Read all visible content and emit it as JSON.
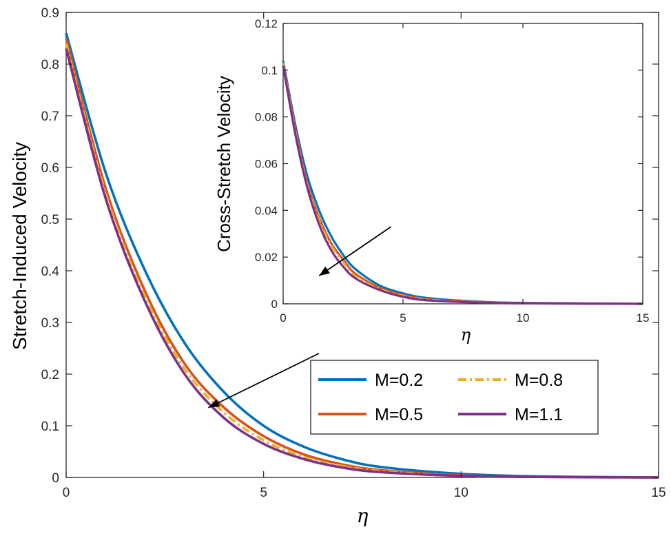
{
  "chart_data": [
    {
      "type": "line",
      "panel": "main",
      "xlabel": "η",
      "ylabel": "Stretch-Induced Velocity",
      "xlim": [
        0,
        15
      ],
      "ylim": [
        0,
        0.9
      ],
      "xticks": [
        0,
        5,
        10,
        15
      ],
      "yticks": [
        0,
        0.1,
        0.2,
        0.3,
        0.4,
        0.5,
        0.6,
        0.7,
        0.8,
        0.9
      ],
      "xtick_labels": [
        "0",
        "5",
        "10",
        "15"
      ],
      "ytick_labels": [
        "0",
        "0.1",
        "0.2",
        "0.3",
        "0.4",
        "0.5",
        "0.6",
        "0.7",
        "0.8",
        "0.9"
      ],
      "grid": false,
      "legend": "lower-right, 2 columns",
      "annotation": "arrow pointing in direction of increasing M",
      "series": [
        {
          "name": "M=0.2",
          "color": "#0072BD",
          "style": "solid",
          "x": [
            0,
            1,
            2,
            3,
            4,
            5,
            6,
            7,
            8,
            10,
            12,
            15
          ],
          "y": [
            0.86,
            0.59,
            0.4,
            0.26,
            0.165,
            0.1,
            0.06,
            0.035,
            0.02,
            0.007,
            0.002,
            0.0
          ]
        },
        {
          "name": "M=0.5",
          "color": "#D95319",
          "style": "solid",
          "x": [
            0,
            1,
            2,
            3,
            4,
            5,
            6,
            7,
            8,
            10,
            12,
            15
          ],
          "y": [
            0.85,
            0.56,
            0.36,
            0.22,
            0.135,
            0.08,
            0.045,
            0.025,
            0.014,
            0.004,
            0.001,
            0.0
          ]
        },
        {
          "name": "M=0.8",
          "color": "#EDB120",
          "style": "dashdot",
          "x": [
            0,
            1,
            2,
            3,
            4,
            5,
            6,
            7,
            8,
            10,
            12,
            15
          ],
          "y": [
            0.84,
            0.55,
            0.35,
            0.21,
            0.125,
            0.072,
            0.04,
            0.022,
            0.012,
            0.003,
            0.001,
            0.0
          ]
        },
        {
          "name": "M=1.1",
          "color": "#7E2F8E",
          "style": "solid",
          "x": [
            0,
            1,
            2,
            3,
            4,
            5,
            6,
            7,
            8,
            10,
            12,
            15
          ],
          "y": [
            0.83,
            0.54,
            0.34,
            0.2,
            0.115,
            0.065,
            0.036,
            0.019,
            0.01,
            0.003,
            0.001,
            0.0
          ]
        }
      ],
      "arrow": {
        "from": [
          6.4,
          0.24
        ],
        "to": [
          3.6,
          0.135
        ]
      }
    },
    {
      "type": "line",
      "panel": "inset",
      "xlabel": "η",
      "ylabel": "Cross-Stretch Velocity",
      "xlim": [
        0,
        15
      ],
      "ylim": [
        0,
        0.12
      ],
      "xticks": [
        0,
        5,
        10,
        15
      ],
      "yticks": [
        0,
        0.02,
        0.04,
        0.06,
        0.08,
        0.1,
        0.12
      ],
      "xtick_labels": [
        "0",
        "5",
        "10",
        "15"
      ],
      "ytick_labels": [
        "0",
        "0.02",
        "0.04",
        "0.06",
        "0.08",
        "0.1",
        "0.12"
      ],
      "grid": false,
      "series": [
        {
          "name": "M=0.2",
          "color": "#0072BD",
          "style": "solid",
          "x": [
            0,
            0.5,
            1,
            1.5,
            2,
            2.5,
            3,
            4,
            5,
            6,
            8,
            10,
            15
          ],
          "y": [
            0.104,
            0.077,
            0.055,
            0.04,
            0.029,
            0.021,
            0.015,
            0.008,
            0.0045,
            0.0025,
            0.001,
            0.0004,
            0.0
          ]
        },
        {
          "name": "M=0.5",
          "color": "#D95319",
          "style": "solid",
          "x": [
            0,
            0.5,
            1,
            1.5,
            2,
            2.5,
            3,
            4,
            5,
            6,
            8,
            10,
            15
          ],
          "y": [
            0.103,
            0.075,
            0.052,
            0.037,
            0.026,
            0.019,
            0.013,
            0.007,
            0.0038,
            0.002,
            0.0008,
            0.0003,
            0.0
          ]
        },
        {
          "name": "M=0.8",
          "color": "#EDB120",
          "style": "dashdot",
          "x": [
            0,
            0.5,
            1,
            1.5,
            2,
            2.5,
            3,
            4,
            5,
            6,
            8,
            10,
            15
          ],
          "y": [
            0.103,
            0.074,
            0.051,
            0.036,
            0.025,
            0.018,
            0.012,
            0.0065,
            0.0034,
            0.0018,
            0.0007,
            0.0002,
            0.0
          ]
        },
        {
          "name": "M=1.1",
          "color": "#7E2F8E",
          "style": "solid",
          "x": [
            0,
            0.5,
            1,
            1.5,
            2,
            2.5,
            3,
            4,
            5,
            6,
            8,
            10,
            15
          ],
          "y": [
            0.102,
            0.073,
            0.05,
            0.034,
            0.023,
            0.016,
            0.011,
            0.006,
            0.003,
            0.0015,
            0.0006,
            0.0002,
            0.0
          ]
        }
      ],
      "arrow": {
        "from": [
          4.5,
          0.033
        ],
        "to": [
          1.5,
          0.012
        ]
      }
    }
  ],
  "legend": {
    "entries": [
      {
        "label": "M=0.2",
        "color": "#0072BD",
        "style": "solid"
      },
      {
        "label": "M=0.8",
        "color": "#EDB120",
        "style": "dashdot"
      },
      {
        "label": "M=0.5",
        "color": "#D95319",
        "style": "solid"
      },
      {
        "label": "M=1.1",
        "color": "#7E2F8E",
        "style": "solid"
      }
    ]
  }
}
